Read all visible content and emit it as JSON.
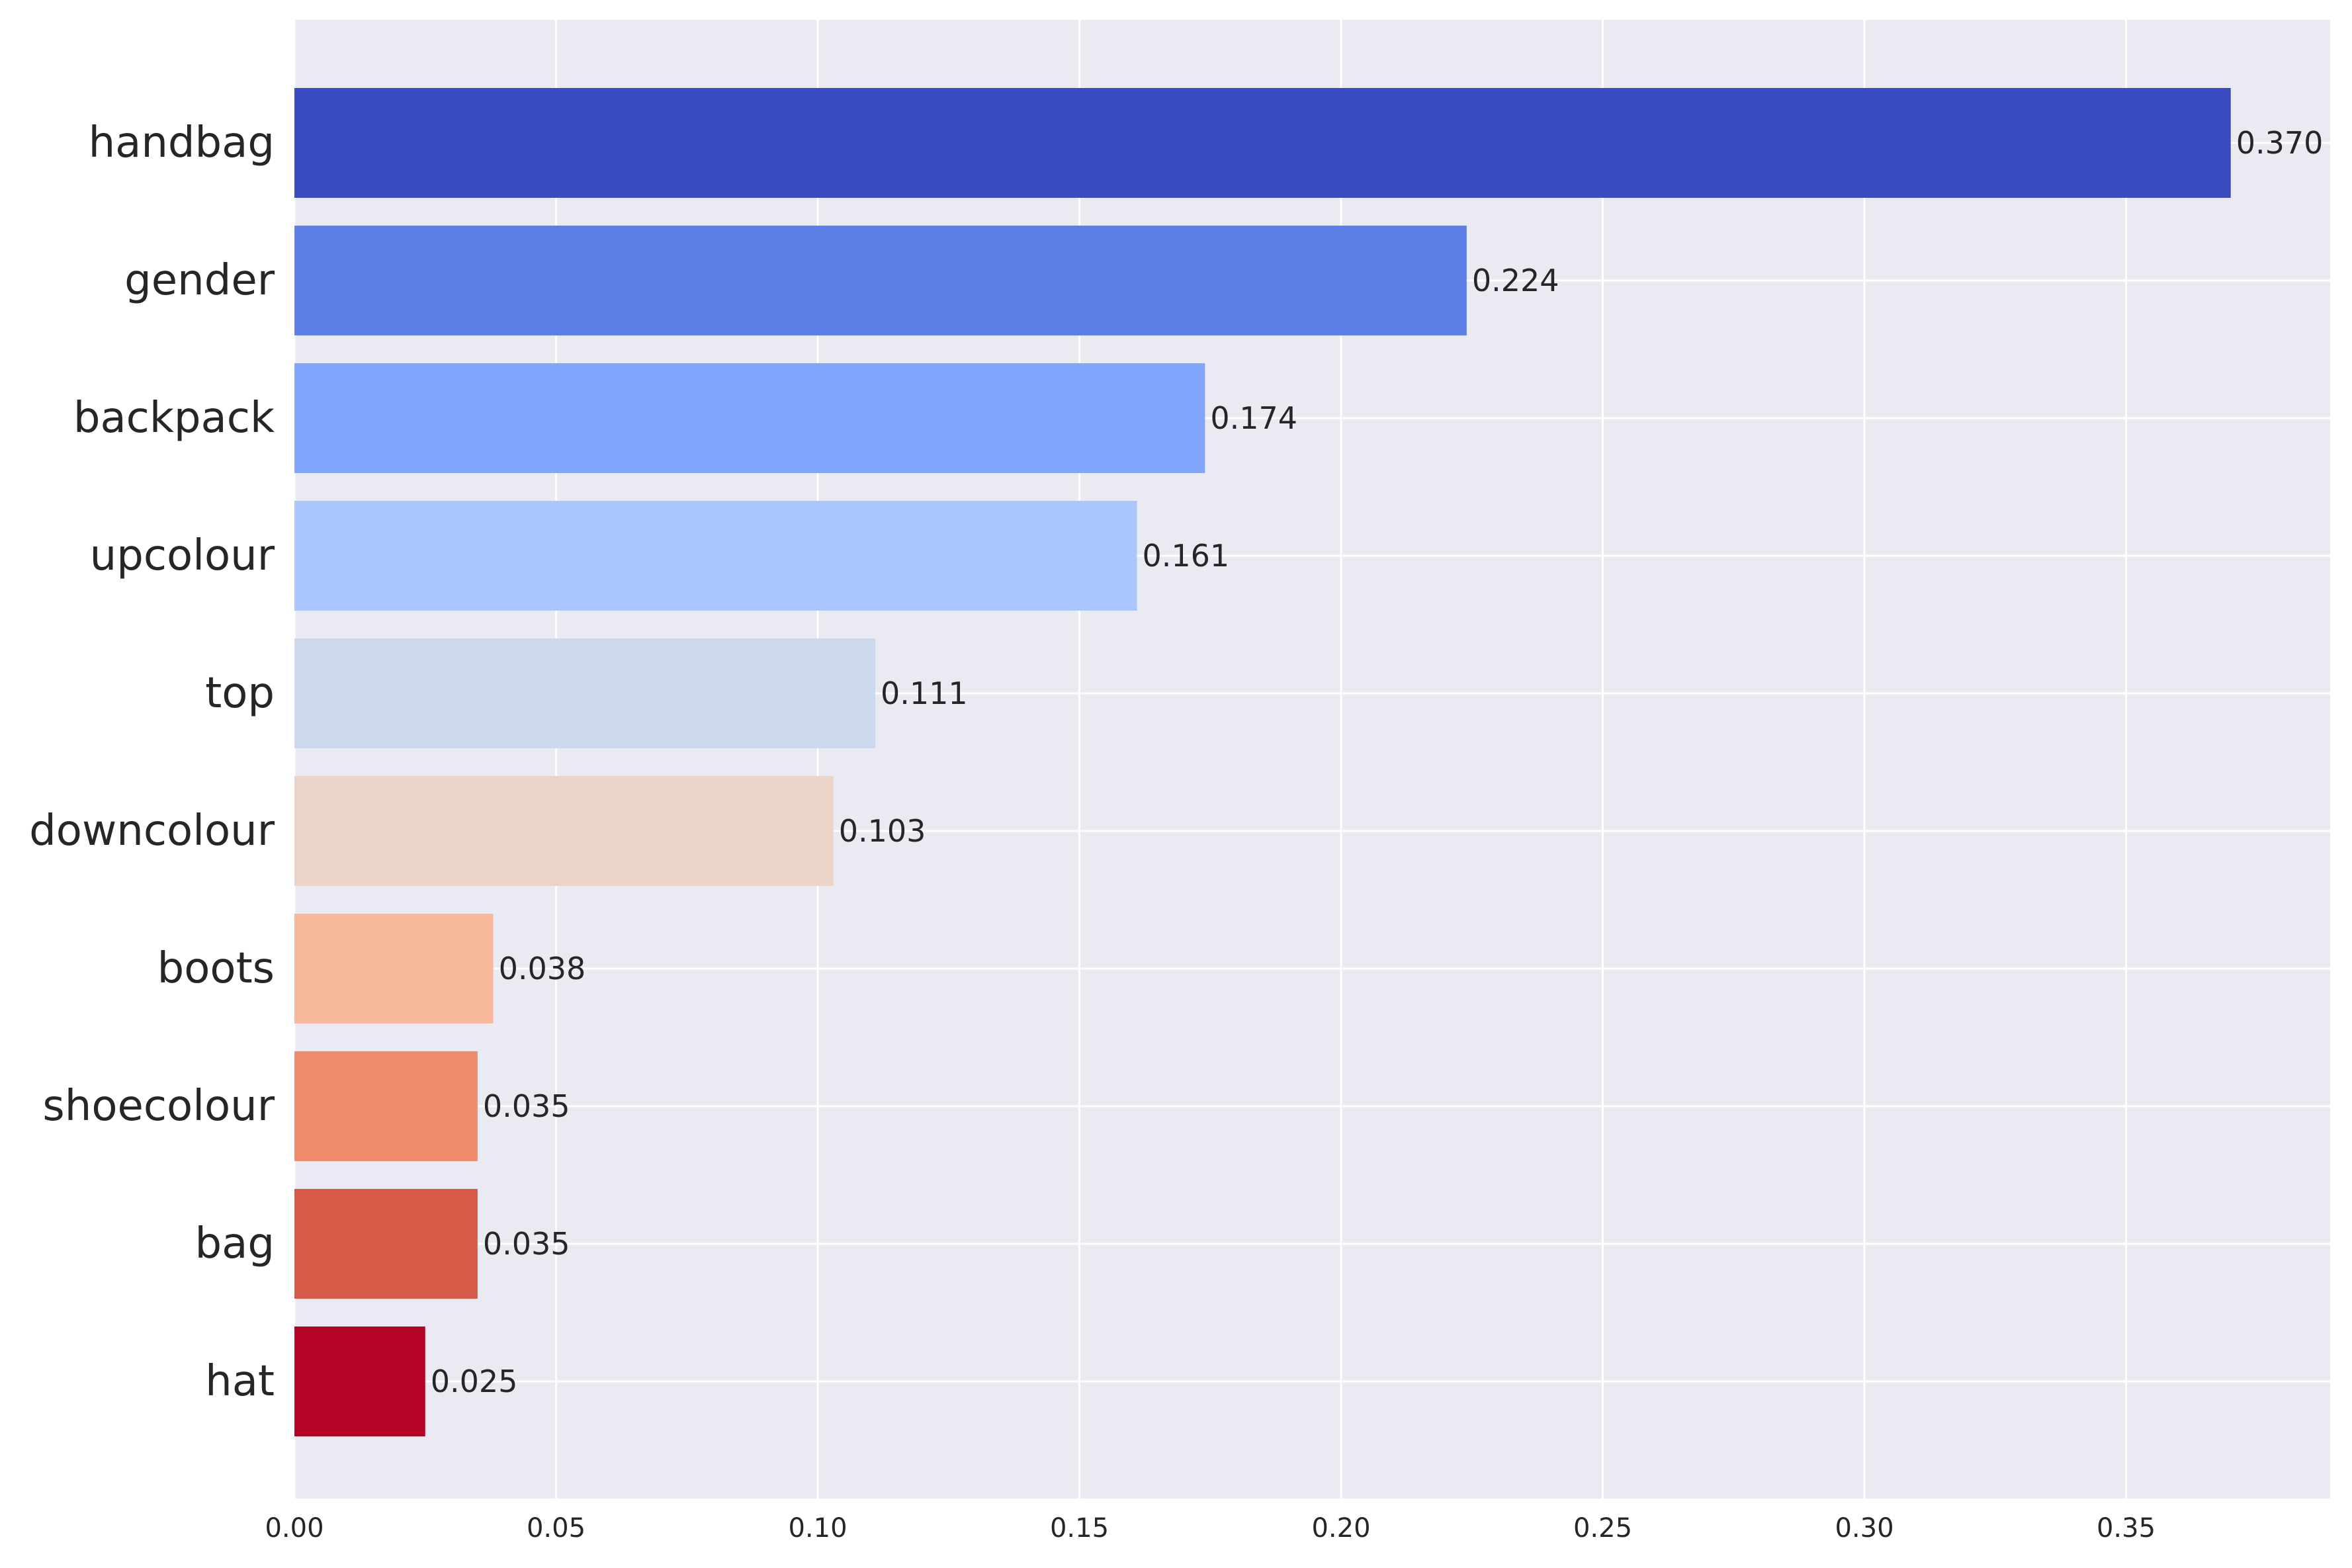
{
  "chart_data": {
    "type": "bar",
    "orientation": "horizontal",
    "title": "",
    "xlabel": "",
    "ylabel": "",
    "categories": [
      "handbag",
      "gender",
      "backpack",
      "upcolour",
      "top",
      "downcolour",
      "boots",
      "shoecolour",
      "bag",
      "hat"
    ],
    "values": [
      0.37,
      0.224,
      0.174,
      0.161,
      0.111,
      0.103,
      0.038,
      0.035,
      0.035,
      0.025
    ],
    "value_labels": [
      "0.370",
      "0.224",
      "0.174",
      "0.161",
      "0.111",
      "0.103",
      "0.038",
      "0.035",
      "0.035",
      "0.025"
    ],
    "bar_colors": [
      "#3b4cc0",
      "#5f7fe8",
      "#82a6fb",
      "#aac7fd",
      "#cdd9ec",
      "#ead4c8",
      "#f7b89c",
      "#f08b6e",
      "#da5a49",
      "#b40426"
    ],
    "xlim": [
      0,
      0.389
    ],
    "x_ticks": [
      0.0,
      0.05,
      0.1,
      0.15,
      0.2,
      0.25,
      0.3,
      0.35
    ],
    "x_tick_labels": [
      "0.00",
      "0.05",
      "0.10",
      "0.15",
      "0.20",
      "0.25",
      "0.30",
      "0.35"
    ],
    "grid": true,
    "legend": "none",
    "colormap": "coolwarm"
  }
}
